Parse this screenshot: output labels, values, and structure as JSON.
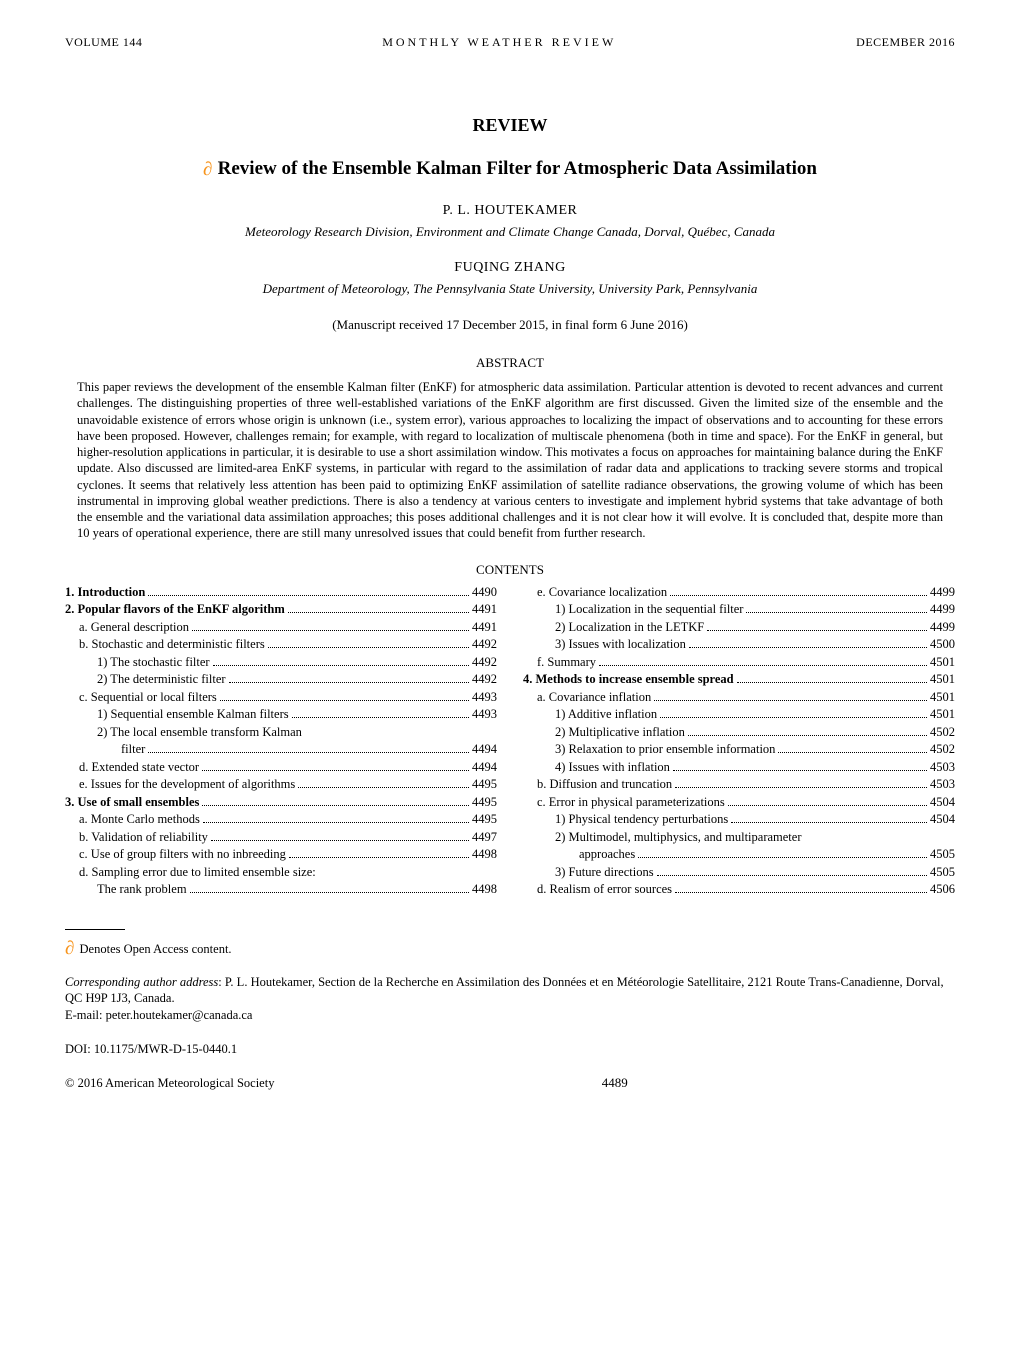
{
  "header": {
    "left": "VOLUME 144",
    "center": "MONTHLY WEATHER REVIEW",
    "right": "DECEMBER 2016"
  },
  "review_label": "REVIEW",
  "title": "Review of the Ensemble Kalman Filter for Atmospheric Data Assimilation",
  "authors": [
    {
      "name": "P. L. HOUTEKAMER",
      "affil": "Meteorology Research Division, Environment and Climate Change Canada, Dorval, Québec, Canada"
    },
    {
      "name": "FUQING ZHANG",
      "affil": "Department of Meteorology, The Pennsylvania State University, University Park, Pennsylvania"
    }
  ],
  "manuscript": "(Manuscript received 17 December 2015, in final form 6 June 2016)",
  "abstract_heading": "ABSTRACT",
  "abstract_body": "This paper reviews the development of the ensemble Kalman filter (EnKF) for atmospheric data assimilation. Particular attention is devoted to recent advances and current challenges. The distinguishing properties of three well-established variations of the EnKF algorithm are first discussed. Given the limited size of the ensemble and the unavoidable existence of errors whose origin is unknown (i.e., system error), various approaches to localizing the impact of observations and to accounting for these errors have been proposed. However, challenges remain; for example, with regard to localization of multiscale phenomena (both in time and space). For the EnKF in general, but higher-resolution applications in particular, it is desirable to use a short assimilation window. This motivates a focus on approaches for maintaining balance during the EnKF update. Also discussed are limited-area EnKF systems, in particular with regard to the assimilation of radar data and applications to tracking severe storms and tropical cyclones. It seems that relatively less attention has been paid to optimizing EnKF assimilation of satellite radiance observations, the growing volume of which has been instrumental in improving global weather predictions. There is also a tendency at various centers to investigate and implement hybrid systems that take advantage of both the ensemble and the variational data assimilation approaches; this poses additional challenges and it is not clear how it will evolve. It is concluded that, despite more than 10 years of operational experience, there are still many unresolved issues that could benefit from further research.",
  "contents_heading": "CONTENTS",
  "toc": {
    "left": [
      {
        "label": "1. Introduction",
        "page": "4490",
        "indent": 0,
        "bold": true
      },
      {
        "label": "2. Popular flavors of the EnKF algorithm",
        "page": "4491",
        "indent": 0,
        "bold": true
      },
      {
        "label": "a. General description",
        "page": "4491",
        "indent": 1,
        "bold": false
      },
      {
        "label": "b. Stochastic and deterministic filters",
        "page": "4492",
        "indent": 1,
        "bold": false
      },
      {
        "label": "1) The stochastic filter",
        "page": "4492",
        "indent": 2,
        "bold": false
      },
      {
        "label": "2) The deterministic filter",
        "page": "4492",
        "indent": 2,
        "bold": false
      },
      {
        "label": "c. Sequential or local filters",
        "page": "4493",
        "indent": 1,
        "bold": false
      },
      {
        "label": "1) Sequential ensemble Kalman filters",
        "page": "4493",
        "indent": 2,
        "bold": false
      },
      {
        "label": "2) The local ensemble transform Kalman",
        "page": "",
        "indent": 2,
        "bold": false
      },
      {
        "label": "filter",
        "page": "4494",
        "indent": 3,
        "bold": false
      },
      {
        "label": "d. Extended state vector",
        "page": "4494",
        "indent": 1,
        "bold": false
      },
      {
        "label": "e. Issues for the development of algorithms",
        "page": "4495",
        "indent": 1,
        "bold": false
      },
      {
        "label": "3. Use of small ensembles",
        "page": "4495",
        "indent": 0,
        "bold": true
      },
      {
        "label": "a. Monte Carlo methods",
        "page": "4495",
        "indent": 1,
        "bold": false
      },
      {
        "label": "b. Validation of reliability",
        "page": "4497",
        "indent": 1,
        "bold": false
      },
      {
        "label": "c. Use of group filters with no inbreeding",
        "page": "4498",
        "indent": 1,
        "bold": false
      },
      {
        "label": "d. Sampling error due to limited ensemble size:",
        "page": "",
        "indent": 1,
        "bold": false
      },
      {
        "label": "The rank problem",
        "page": "4498",
        "indent": 2,
        "bold": false
      }
    ],
    "right": [
      {
        "label": "e. Covariance localization",
        "page": "4499",
        "indent": 1,
        "bold": false
      },
      {
        "label": "1) Localization in the sequential filter",
        "page": "4499",
        "indent": 2,
        "bold": false
      },
      {
        "label": "2) Localization in the LETKF",
        "page": "4499",
        "indent": 2,
        "bold": false
      },
      {
        "label": "3) Issues with localization",
        "page": "4500",
        "indent": 2,
        "bold": false
      },
      {
        "label": "f. Summary",
        "page": "4501",
        "indent": 1,
        "bold": false
      },
      {
        "label": "4. Methods to increase ensemble spread",
        "page": "4501",
        "indent": 0,
        "bold": true
      },
      {
        "label": "a. Covariance inflation",
        "page": "4501",
        "indent": 1,
        "bold": false
      },
      {
        "label": "1) Additive inflation",
        "page": "4501",
        "indent": 2,
        "bold": false
      },
      {
        "label": "2) Multiplicative inflation",
        "page": "4502",
        "indent": 2,
        "bold": false
      },
      {
        "label": "3) Relaxation to prior ensemble information",
        "page": "4502",
        "indent": 2,
        "bold": false
      },
      {
        "label": "4) Issues with inflation",
        "page": "4503",
        "indent": 2,
        "bold": false
      },
      {
        "label": "b. Diffusion and truncation",
        "page": "4503",
        "indent": 1,
        "bold": false
      },
      {
        "label": "c. Error in physical parameterizations",
        "page": "4504",
        "indent": 1,
        "bold": false
      },
      {
        "label": "1) Physical tendency perturbations",
        "page": "4504",
        "indent": 2,
        "bold": false
      },
      {
        "label": "2) Multimodel, multiphysics, and multiparameter",
        "page": "",
        "indent": 2,
        "bold": false
      },
      {
        "label": "approaches",
        "page": "4505",
        "indent": 3,
        "bold": false
      },
      {
        "label": "3) Future directions",
        "page": "4505",
        "indent": 2,
        "bold": false
      },
      {
        "label": "d. Realism of error sources",
        "page": "4506",
        "indent": 1,
        "bold": false
      }
    ]
  },
  "oa_footnote": " Denotes Open Access content.",
  "corresponding_label": "Corresponding author address",
  "corresponding_text": ": P. L. Houtekamer, Section de la Recherche en Assimilation des Données et en Météorologie Satellitaire, 2121 Route Trans-Canadienne, Dorval, QC H9P 1J3, Canada.",
  "email": "E-mail: peter.houtekamer@canada.ca",
  "doi": "DOI: 10.1175/MWR-D-15-0440.1",
  "footer": {
    "copyright": "© 2016 American Meteorological Society",
    "page": "4489"
  },
  "colors": {
    "accent": "#f7941d",
    "text": "#000000",
    "bg": "#ffffff"
  }
}
